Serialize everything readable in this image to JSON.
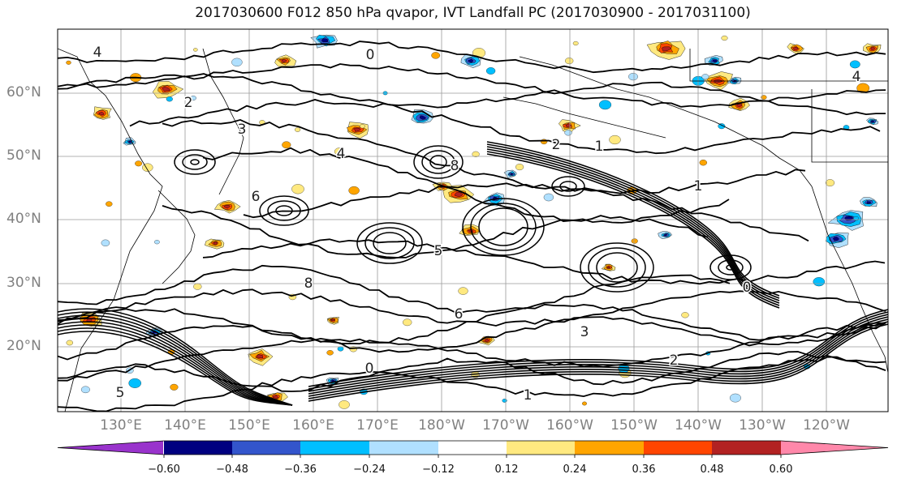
{
  "figure": {
    "title": "2017030600 F012 850 hPa qvapor, IVT Landfall PC (2017030900 - 2017031100)"
  },
  "map": {
    "lat_labels": [
      "60°N",
      "50°N",
      "40°N",
      "30°N",
      "20°N"
    ],
    "lon_labels": [
      "130°E",
      "140°E",
      "150°E",
      "160°E",
      "170°E",
      "180°W",
      "170°W",
      "160°W",
      "150°W",
      "140°W",
      "130°W",
      "120°W"
    ],
    "contour_labels": [
      "0",
      "1",
      "2",
      "3",
      "4",
      "5",
      "6",
      "8",
      "0",
      "1",
      "2",
      "4",
      "6",
      "8",
      "3",
      "1",
      "0",
      "2",
      "5",
      "4"
    ],
    "line_color": "#000000",
    "coast_color": "#000000",
    "grid_color": "#9a9a9a"
  },
  "colorbar": {
    "tick_labels": [
      "−0.60",
      "−0.48",
      "−0.36",
      "−0.24",
      "−0.12",
      "0.12",
      "0.24",
      "0.36",
      "0.48",
      "0.60"
    ],
    "colors": [
      "#9933cc",
      "#000080",
      "#3355cc",
      "#00bfff",
      "#b0e0ff",
      "#ffffff",
      "#ffe980",
      "#ffa500",
      "#ff4500",
      "#b22222",
      "#ff88aa"
    ]
  }
}
